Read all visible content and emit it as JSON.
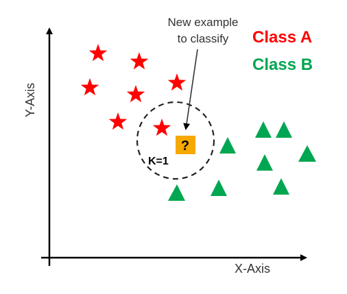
{
  "axes": {
    "x_label": "X-Axis",
    "y_label": "Y-Axis"
  },
  "legend": [
    {
      "text": "Class A",
      "color": "#ff0000",
      "shape": "star"
    },
    {
      "text": "Class B",
      "color": "#00a651",
      "shape": "triangle"
    }
  ],
  "annotation": {
    "line1": "New example",
    "line2": "to classify"
  },
  "query": {
    "symbol": "?",
    "fill": "#f5a800"
  },
  "neighborhood": {
    "label": "K=1"
  },
  "colors": {
    "axis": "#000000",
    "class_a": "#ff0000",
    "class_b": "#00a651",
    "text": "#333333"
  }
}
